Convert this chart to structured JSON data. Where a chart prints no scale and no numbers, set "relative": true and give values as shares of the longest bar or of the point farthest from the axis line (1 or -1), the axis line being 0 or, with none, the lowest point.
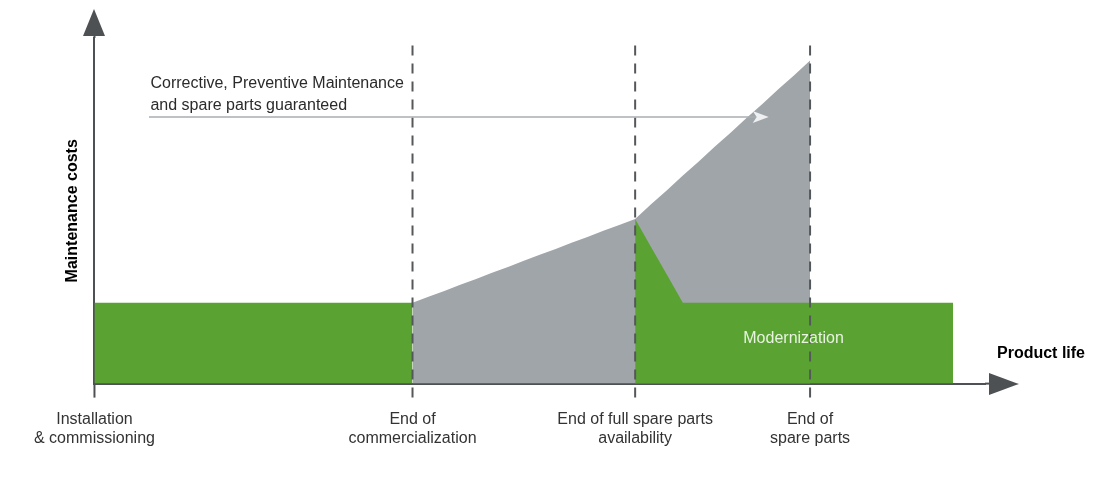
{
  "chart_data": {
    "type": "area",
    "relative": true,
    "xlabel": "Product life",
    "ylabel": "Maintenance costs",
    "categories": [
      "Installation\n& commissioning",
      null,
      null,
      null,
      null,
      null,
      null,
      null,
      null,
      null,
      null,
      null,
      null,
      null,
      null,
      null,
      null,
      null,
      null,
      null,
      "End of\ncommercialization",
      null,
      null,
      null,
      null,
      null,
      null,
      null,
      null,
      null,
      null,
      null,
      null,
      null,
      "End of full spare parts\navailability",
      null,
      null,
      null,
      null,
      null,
      null,
      null,
      null,
      null,
      null,
      "End of\nspare parts",
      null,
      null,
      null,
      null,
      null,
      null,
      null,
      null,
      null,
      null,
      null
    ],
    "series": [
      {
        "color": "#5aa333",
        "values": [
          0.25,
          0.25,
          0.25,
          0.25,
          0.25,
          0.25,
          0.25,
          0.25,
          0.25,
          0.25,
          0.25,
          0.25,
          0.25,
          0.25,
          0.25,
          0.25,
          0.25,
          0.25,
          0.25,
          0.25,
          0.25,
          null,
          null,
          null,
          null,
          null,
          null,
          null,
          null,
          null,
          null,
          null,
          null,
          null,
          null,
          null,
          null,
          null,
          null,
          null,
          null,
          null,
          null,
          null,
          null,
          null,
          null,
          null,
          null,
          null,
          null,
          null,
          null,
          null,
          null,
          null,
          null
        ]
      },
      {
        "color": "#5aa333",
        "values": [
          null,
          null,
          null,
          null,
          null,
          null,
          null,
          null,
          null,
          null,
          null,
          null,
          null,
          null,
          null,
          null,
          null,
          null,
          null,
          null,
          null,
          null,
          null,
          null,
          null,
          null,
          null,
          null,
          null,
          null,
          null,
          null,
          null,
          null,
          0.51,
          0.423,
          0.337,
          0.25,
          0.25,
          0.25,
          0.25,
          0.25,
          0.25,
          0.25,
          0.25,
          0.25,
          0.25,
          0.25,
          0.25,
          0.25,
          0.25,
          0.25,
          0.25,
          0.25,
          0.25,
          null,
          null
        ]
      },
      {
        "color": "#a0a5a9",
        "values": [
          null,
          null,
          null,
          null,
          null,
          null,
          null,
          null,
          null,
          null,
          null,
          null,
          null,
          null,
          null,
          null,
          null,
          null,
          null,
          null,
          0.25,
          0.269,
          0.287,
          0.306,
          0.324,
          0.343,
          0.361,
          0.38,
          0.399,
          0.417,
          0.436,
          0.454,
          0.473,
          0.491,
          0.51,
          0.555,
          0.599,
          0.644,
          0.688,
          0.733,
          0.777,
          0.822,
          0.866,
          0.911,
          0.955,
          1,
          null,
          null,
          null,
          null,
          null,
          null,
          null,
          null,
          null,
          null,
          null
        ]
      }
    ],
    "ref_lines": [
      {
        "axis": "x",
        "value": "End of\ncommercialization",
        "color": "#55585b",
        "line_style": "dashed"
      },
      {
        "axis": "x",
        "value": "End of full spare parts\navailability",
        "color": "#55585b",
        "line_style": "dashed"
      },
      {
        "axis": "x",
        "value": "End of\nspare parts",
        "color": "#55585b",
        "line_style": "dashed"
      }
    ],
    "annotations": [
      "Corrective, Preventive Maintenance\nand spare parts guaranteed",
      "Modernization"
    ],
    "grid": false
  }
}
